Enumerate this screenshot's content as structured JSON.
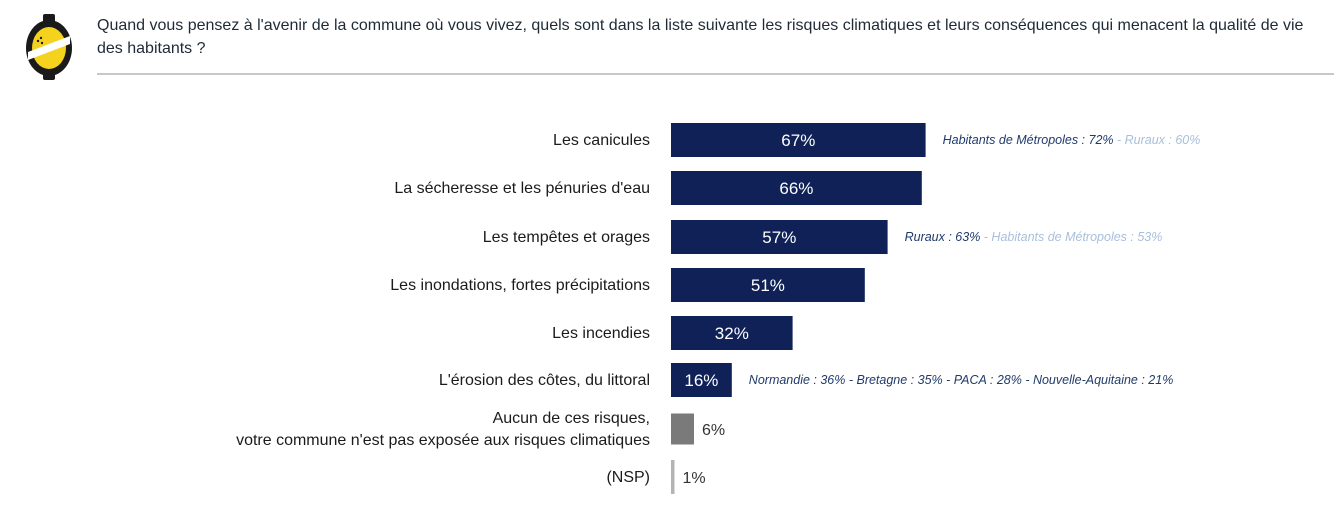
{
  "header": {
    "question": "Quand vous pensez à l'avenir de la commune où vous vivez, quels sont dans la liste suivante les risques climatiques et leurs conséquences qui menacent la qualité de vie des habitants ?"
  },
  "colors": {
    "bar_main": "#0f2157",
    "bar_none": "#7a7a7a",
    "bar_nsp": "#b4b4b4",
    "note_dark": "#1f3b6b",
    "note_light": "#a8bfdb",
    "logo_yellow": "#f4d21e"
  },
  "chart_data": {
    "type": "bar",
    "orientation": "horizontal",
    "title": "",
    "xlim": [
      0,
      100
    ],
    "categories": [
      "Les canicules",
      "La sécheresse et les pénuries d'eau",
      "Les tempêtes et orages",
      "Les inondations, fortes précipitations",
      "Les incendies",
      "L'érosion des côtes, du littoral",
      "Aucun de ces risques,\nvotre commune n'est pas exposée aux risques climatiques",
      "(NSP)"
    ],
    "values": [
      67,
      66,
      57,
      51,
      32,
      16,
      6,
      1
    ],
    "value_labels": [
      "67%",
      "66%",
      "57%",
      "51%",
      "32%",
      "16%",
      "6%",
      "1%"
    ],
    "bar_styles": [
      "main",
      "main",
      "main",
      "main",
      "main",
      "main",
      "none",
      "nsp"
    ],
    "annotations": [
      {
        "bar": 0,
        "parts": [
          {
            "text": "Habitants de Métropoles : 72%",
            "tone": "dark"
          },
          {
            "text": " - Ruraux : 60%",
            "tone": "light"
          }
        ]
      },
      {
        "bar": 2,
        "parts": [
          {
            "text": "Ruraux : 63%",
            "tone": "dark"
          },
          {
            "text": " - Habitants de Métropoles : 53%",
            "tone": "light"
          }
        ]
      },
      {
        "bar": 5,
        "parts": [
          {
            "text": "Normandie : 36% - Bretagne : 35% - PACA : 28% - Nouvelle-Aquitaine : 21%",
            "tone": "dark"
          }
        ]
      }
    ]
  }
}
